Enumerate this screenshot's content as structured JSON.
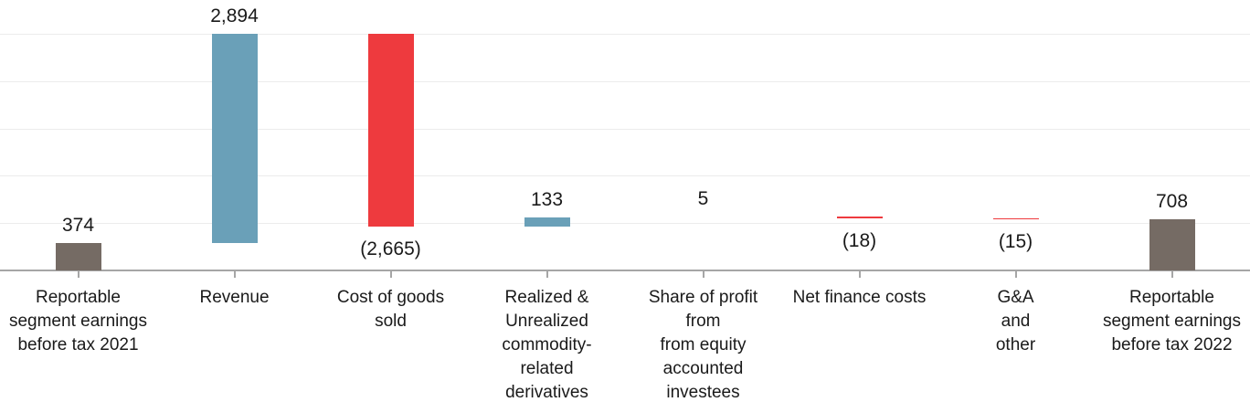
{
  "chart_data": {
    "type": "bar",
    "subtype": "waterfall",
    "title": "",
    "xlabel": "",
    "ylabel": "",
    "ylim": [
      0,
      3268
    ],
    "grid": true,
    "gridline_count": 5,
    "legend": "none",
    "categories": [
      "Reportable\nsegment earnings\nbefore tax 2021",
      "Revenue",
      "Cost of goods\nsold",
      "Realized &\nUnrealized\ncommodity-\nrelated\nderivatives",
      "Share of profit\nfrom\nfrom equity\naccounted\ninvestees",
      "Net finance costs",
      "G&A\nand\nother",
      "Reportable\nsegment earnings\nbefore tax 2022"
    ],
    "values": [
      374,
      2894,
      -2665,
      133,
      5,
      -18,
      -15,
      708
    ],
    "data_labels": [
      "374",
      "2,894",
      "(2,665)",
      "133",
      "5",
      "(18)",
      "(15)",
      "708"
    ],
    "bar_types": [
      "total",
      "increase",
      "decrease",
      "increase",
      "increase",
      "decrease",
      "decrease",
      "total"
    ],
    "colors": {
      "total": "#756b64",
      "increase": "#6aa0b8",
      "decrease": "#ee3a3e",
      "axis": "#a6a6a6",
      "gridline": "#ececec",
      "label_text": "#1a1a1a"
    }
  }
}
